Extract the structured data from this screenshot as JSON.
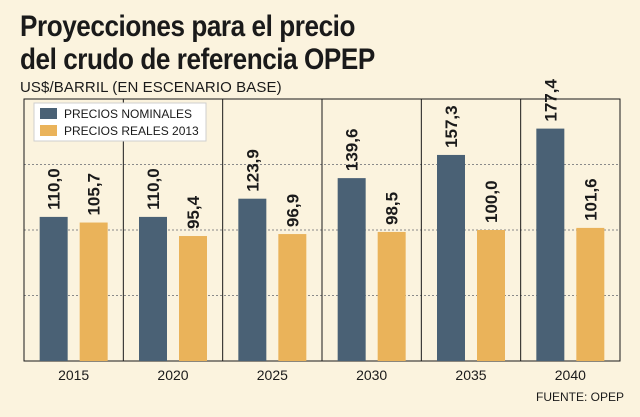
{
  "title_lines": [
    "Proyecciones para el precio",
    "del crudo de referencia OPEP"
  ],
  "subtitle": "US$/BARRIL (EN ESCENARIO BASE)",
  "source": "FUENTE: OPEP",
  "colors": {
    "background": "#fbf3de",
    "nominal": "#4a6175",
    "real": "#eab35a",
    "grid": "#8a8a8a",
    "border": "#1a1a1a"
  },
  "chart_data": {
    "type": "bar",
    "categories": [
      "2015",
      "2020",
      "2025",
      "2030",
      "2035",
      "2040"
    ],
    "series": [
      {
        "name": "PRECIOS NOMINALES",
        "values": [
          110.0,
          110.0,
          123.9,
          139.6,
          157.3,
          177.4
        ],
        "labels": [
          "110,0",
          "110,0",
          "123,9",
          "139,6",
          "157,3",
          "177,4"
        ]
      },
      {
        "name": "PRECIOS REALES 2013",
        "values": [
          105.7,
          95.4,
          96.9,
          98.5,
          100.0,
          101.6
        ],
        "labels": [
          "105,7",
          "95,4",
          "96,9",
          "98,5",
          "100,0",
          "101,6"
        ]
      }
    ],
    "ylim": [
      0,
      200
    ],
    "gridlines": [
      50,
      100,
      150,
      200
    ],
    "legend": "top-left",
    "data_label_rotation": "vertical"
  }
}
